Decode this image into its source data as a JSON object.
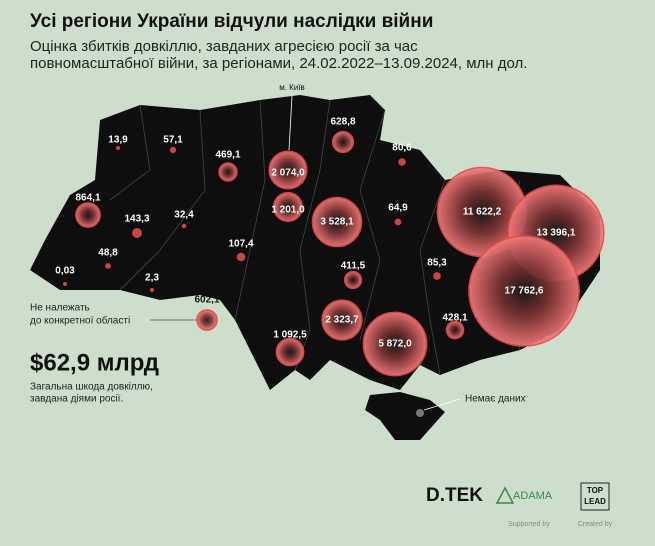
{
  "header": {
    "title": "Усі регіони України відчули наслідки війни",
    "subtitle_lines": [
      "Оцінка збитків довкіллю, завданих агресією росії за час",
      "повномасштабної війни, за регіонами, 24.02.2022–13.09.2024, млн дол."
    ]
  },
  "regions": [
    {
      "label": "13,9",
      "value": 13.9
    },
    {
      "label": "57,1",
      "value": 57.1
    },
    {
      "label": "469,1",
      "value": 469.1
    },
    {
      "label": "628,8",
      "value": 628.8
    },
    {
      "label": "80,6",
      "value": 80.6
    },
    {
      "label": "864,1",
      "value": 864.1
    },
    {
      "label": "143,3",
      "value": 143.3
    },
    {
      "label": "32,4",
      "value": 32.4
    },
    {
      "label": "2 074,0",
      "value": 2074.0
    },
    {
      "label": "1 201,0",
      "value": 1201.0
    },
    {
      "label": "3 528,1",
      "value": 3528.1
    },
    {
      "label": "64,9",
      "value": 64.9
    },
    {
      "label": "11 622,2",
      "value": 11622.2
    },
    {
      "label": "13 396,1",
      "value": 13396.1
    },
    {
      "label": "17 762,6",
      "value": 17762.6
    },
    {
      "label": "48,8",
      "value": 48.8
    },
    {
      "label": "107,4",
      "value": 107.4
    },
    {
      "label": "411,5",
      "value": 411.5
    },
    {
      "label": "85,3",
      "value": 85.3
    },
    {
      "label": "0,03",
      "value": 0.03
    },
    {
      "label": "2,3",
      "value": 2.3
    },
    {
      "label": "2 323,7",
      "value": 2323.7
    },
    {
      "label": "428,1",
      "value": 428.1
    },
    {
      "label": "1 092,5",
      "value": 1092.5
    },
    {
      "label": "5 872,0",
      "value": 5872.0
    },
    {
      "label": "602,1",
      "value": 602.1
    }
  ],
  "annotations": {
    "kyiv": "м. Київ",
    "unassigned_lines": [
      "Не належать",
      "до конкретної області"
    ],
    "no_data": "Немає даних"
  },
  "total": {
    "label": "$62,9 млрд",
    "caption_lines": [
      "Загальна шкода довкіллю,",
      "завдана діями росії."
    ]
  },
  "logos": {
    "dtek": "D.TEK",
    "adama": "ADAMA",
    "toplead_lines": [
      "TOP",
      "LEAD"
    ],
    "supported_by": "Supported by",
    "created_by": "Created by"
  }
}
